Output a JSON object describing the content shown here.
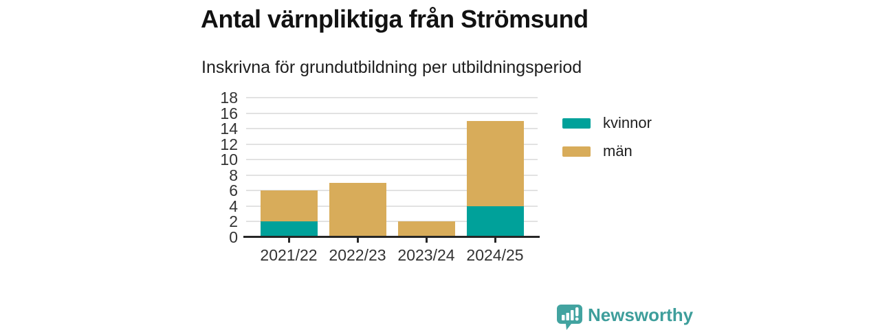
{
  "title": "Antal värnpliktiga från Strömsund",
  "subtitle": "Inskrivna för grundutbildning per utbildningsperiod",
  "chart_data": {
    "type": "bar",
    "stacked": true,
    "title": "Antal värnpliktiga från Strömsund",
    "subtitle": "Inskrivna för grundutbildning per utbildningsperiod",
    "categories": [
      "2021/22",
      "2022/23",
      "2023/24",
      "2024/25"
    ],
    "series": [
      {
        "name": "kvinnor",
        "color": "#00a19a",
        "values": [
          2,
          0,
          0,
          4
        ]
      },
      {
        "name": "män",
        "color": "#d8ac5a",
        "values": [
          4,
          7,
          2,
          11
        ]
      }
    ],
    "totals": [
      6,
      7,
      2,
      15
    ],
    "xlabel": "",
    "ylabel": "",
    "ylim": [
      0,
      18
    ],
    "ytick_step": 2,
    "grid": true,
    "gridline_color": "#e2e2e2",
    "axis_color": "#262626",
    "legend_position": "right"
  },
  "brand": {
    "name": "Newsworthy",
    "logo_icon": "bar-chart-speech-bubble-icon",
    "color": "#42a3a0"
  }
}
